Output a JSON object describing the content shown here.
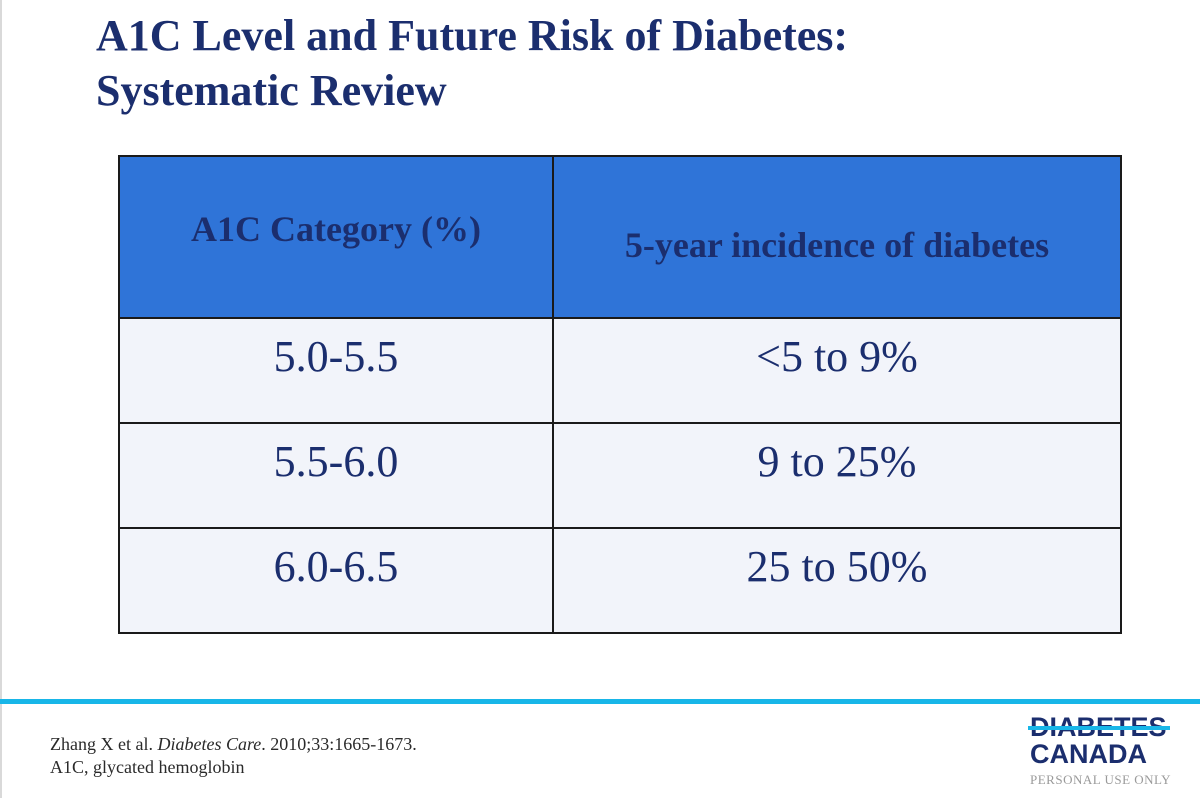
{
  "slide": {
    "title_line1": "A1C Level and Future Risk of Diabetes:",
    "title_line2": "Systematic Review"
  },
  "table": {
    "headers": [
      "A1C Category (%)",
      "5-year incidence of diabetes"
    ],
    "rows": [
      [
        "5.0-5.5",
        "<5 to 9%"
      ],
      [
        "5.5-6.0",
        "9 to 25%"
      ],
      [
        "6.0-6.5",
        "25 to 50%"
      ]
    ]
  },
  "footer": {
    "citation_authors": "Zhang X et al.",
    "citation_journal": "Diabetes Care",
    "citation_details": ". 2010;33:1665-1673.",
    "abbreviation": "A1C, glycated hemoglobin"
  },
  "logo": {
    "line1": "DIABETES",
    "line2": "CANADA",
    "note": "PERSONAL USE ONLY"
  },
  "colors": {
    "title": "#1b2e6e",
    "header_fill": "#2f74d8",
    "row_fill": "#f2f4fa",
    "accent": "#18b6e8"
  }
}
